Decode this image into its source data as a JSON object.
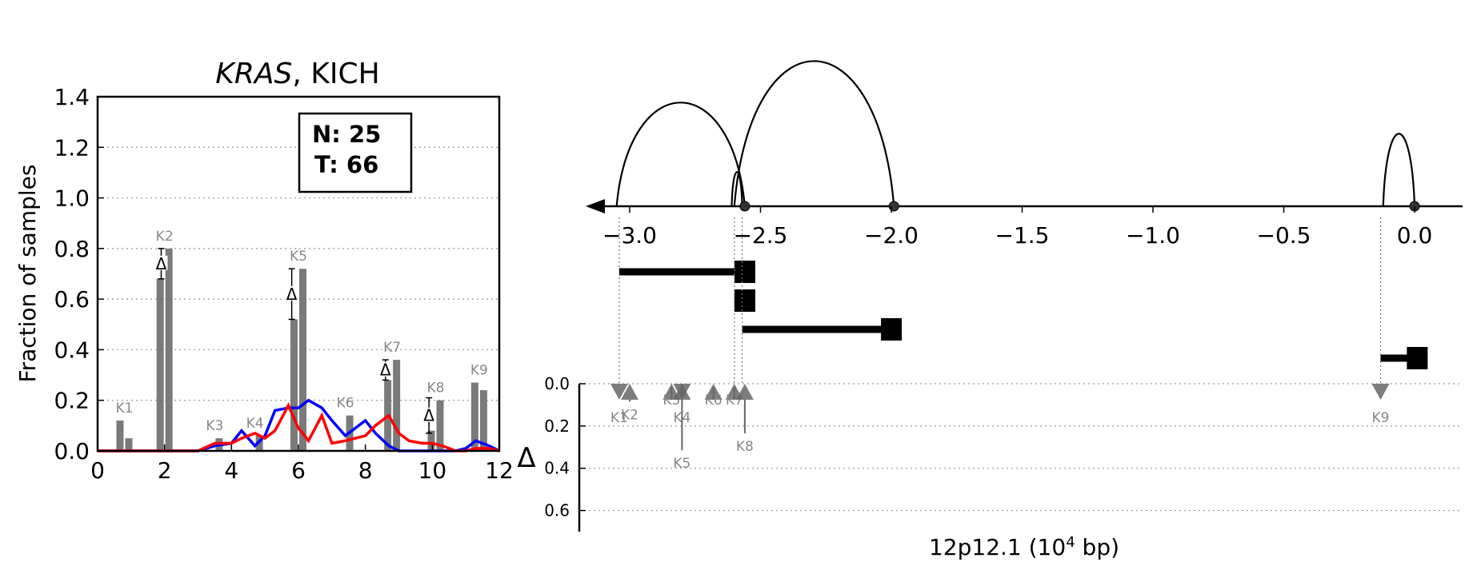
{
  "chart_data": [
    {
      "type": "bar",
      "title": {
        "gene": "KRAS",
        "sep": ", ",
        "cohort": "KICH"
      },
      "ylabel": "Fraction of samples",
      "xlim": [
        0,
        12
      ],
      "ylim": [
        0,
        1.4
      ],
      "xticks": [
        "0",
        "2",
        "4",
        "6",
        "8",
        "10",
        "12"
      ],
      "yticks": [
        "0.0",
        "0.2",
        "0.4",
        "0.6",
        "0.8",
        "1.0",
        "1.2",
        "1.4"
      ],
      "grid": true,
      "counts": {
        "n_label": "N: 25",
        "t_label": "T: 66"
      },
      "bar_colors": {
        "normal": "#a8a8a8",
        "tumor": "#7a7a7a"
      },
      "bars": [
        {
          "label": "K1",
          "x": 0.8,
          "normal": 0.12,
          "tumor": 0.05
        },
        {
          "label": "K2",
          "x": 2.0,
          "normal": 0.68,
          "tumor": 0.8
        },
        {
          "label": "K3",
          "x": 3.5,
          "normal": 0.0,
          "tumor": 0.05
        },
        {
          "label": "K4",
          "x": 4.7,
          "normal": 0.0,
          "tumor": 0.06
        },
        {
          "label": "K5",
          "x": 6.0,
          "normal": 0.52,
          "tumor": 0.72
        },
        {
          "label": "K6",
          "x": 7.4,
          "normal": 0.0,
          "tumor": 0.14
        },
        {
          "label": "K7",
          "x": 8.8,
          "normal": 0.28,
          "tumor": 0.36
        },
        {
          "label": "K8",
          "x": 10.1,
          "normal": 0.08,
          "tumor": 0.2
        },
        {
          "label": "K9",
          "x": 11.4,
          "normal": 0.27,
          "tumor": 0.24
        }
      ],
      "deltas": [
        {
          "x": 1.9,
          "y": 0.74,
          "err": 0.06
        },
        {
          "x": 5.8,
          "y": 0.62,
          "err": 0.1
        },
        {
          "x": 8.6,
          "y": 0.32,
          "err": 0.04
        },
        {
          "x": 9.9,
          "y": 0.14,
          "err": 0.07
        }
      ],
      "delta_symbol": "Δ",
      "series": [
        {
          "color": "#0000ff",
          "x": [
            0,
            1,
            2,
            3,
            3.5,
            4,
            4.3,
            4.7,
            5,
            5.3,
            5.7,
            6,
            6.3,
            6.7,
            7,
            7.4,
            7.7,
            8,
            8.3,
            8.7,
            9,
            9.3,
            9.7,
            10,
            10.3,
            10.7,
            11,
            11.3,
            11.7,
            12
          ],
          "y": [
            0,
            0,
            0,
            0,
            0.02,
            0.03,
            0.08,
            0.02,
            0.06,
            0.16,
            0.17,
            0.17,
            0.2,
            0.17,
            0.12,
            0.06,
            0.09,
            0.12,
            0.07,
            0.02,
            0.0,
            0.0,
            0.0,
            0.0,
            0.0,
            0.0,
            0.01,
            0.04,
            0.02,
            0.0
          ]
        },
        {
          "color": "#ff0000",
          "x": [
            0,
            1,
            2,
            3,
            3.5,
            4,
            4.3,
            4.7,
            5,
            5.3,
            5.7,
            6,
            6.3,
            6.7,
            7,
            7.4,
            7.7,
            8,
            8.3,
            8.7,
            9,
            9.3,
            9.7,
            10,
            10.3,
            10.7,
            11,
            11.3,
            11.7,
            12
          ],
          "y": [
            0,
            0,
            0,
            0,
            0.03,
            0.03,
            0.05,
            0.07,
            0.05,
            0.08,
            0.18,
            0.09,
            0.04,
            0.14,
            0.03,
            0.04,
            0.05,
            0.06,
            0.1,
            0.14,
            0.07,
            0.04,
            0.03,
            0.03,
            0.02,
            0.0,
            0.0,
            0.01,
            0.01,
            0.0
          ]
        }
      ]
    },
    {
      "type": "diagram",
      "xlabel": {
        "main": "12p12.1 (10",
        "sup": "4",
        "tail": " bp)"
      },
      "xlim": [
        -3.2,
        0.2
      ],
      "xticks": [
        {
          "v": -3.0,
          "label": "−3.0"
        },
        {
          "v": -2.5,
          "label": "−2.5"
        },
        {
          "v": -2.0,
          "label": "−2.0"
        },
        {
          "v": -1.5,
          "label": "−1.5"
        },
        {
          "v": -1.0,
          "label": "−1.0"
        },
        {
          "v": -0.5,
          "label": "−0.5"
        },
        {
          "v": 0.0,
          "label": "0.0"
        }
      ],
      "arcs": [
        {
          "x1": -3.05,
          "x2": -2.56,
          "height": 1.0
        },
        {
          "x1": -2.6,
          "x2": -1.99,
          "height": 1.4
        },
        {
          "x1": -2.61,
          "x2": -2.57,
          "height": 0.33
        },
        {
          "x1": -0.12,
          "x2": 0.0,
          "height": 0.7
        }
      ],
      "junction_dots": [
        -2.56,
        -1.99,
        0.0
      ],
      "transcripts": [
        {
          "start": -3.04,
          "end": -2.52
        },
        {
          "start": -2.6,
          "end": -2.52
        },
        {
          "start": -2.57,
          "end": -1.96
        },
        {
          "start": -0.13,
          "end": 0.05
        }
      ],
      "delta_label": "Δ",
      "delta_ylim": [
        0,
        0.7
      ],
      "delta_yticks": [
        "0.0",
        "0.2",
        "0.4",
        "0.6"
      ],
      "markers": [
        {
          "label": "K1",
          "x": -3.04,
          "delta": 0.03,
          "dir": "down"
        },
        {
          "label": "K2",
          "x": -3.0,
          "delta": 0.1,
          "dir": "up"
        },
        {
          "label": "K3",
          "x": -2.84,
          "delta": 0.03,
          "dir": "up"
        },
        {
          "label": "K4",
          "x": -2.8,
          "delta": 0.03,
          "dir": "down"
        },
        {
          "label": "K5",
          "x": -2.8,
          "delta": 0.33,
          "dir": "up"
        },
        {
          "label": "K6",
          "x": -2.68,
          "delta": 0.03,
          "dir": "up"
        },
        {
          "label": "K7",
          "x": -2.6,
          "delta": 0.03,
          "dir": "up"
        },
        {
          "label": "K8",
          "x": -2.56,
          "delta": 0.25,
          "dir": "up"
        },
        {
          "label": "K9",
          "x": -0.13,
          "delta": 0.03,
          "dir": "down"
        }
      ],
      "dotted_guides": [
        -3.04,
        -2.6,
        -2.57,
        -0.13
      ]
    }
  ]
}
